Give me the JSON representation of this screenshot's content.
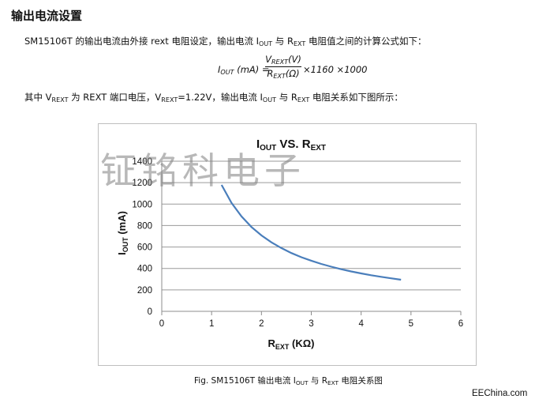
{
  "heading": "输出电流设置",
  "paragraph1": {
    "before": "SM15106T 的输出电流由外接 rext 电阻设定，输出电流 I",
    "sub1": "OUT",
    "middle": " 与 R",
    "sub2": "EXT",
    "after": " 电阻值之间的计算公式如下："
  },
  "formula": {
    "lhs_main": "I",
    "lhs_sub": "OUT",
    "lhs_unit": " (mA) =",
    "num_main": "V",
    "num_sub": "REXT",
    "num_unit": "(V)",
    "den_main": "R",
    "den_sub": "EXT",
    "den_unit": "(Ω)",
    "rhs": "×1160 ×1000"
  },
  "paragraph2": {
    "t1": "其中 V",
    "s1": "REXT",
    "t2": " 为 REXT 端口电压，V",
    "s2": "REXT",
    "t3": "=1.22V，输出电流 I",
    "s3": "OUT",
    "t4": " 与 R",
    "s4": "EXT",
    "t5": " 电阻关系如下图所示："
  },
  "watermark": "钲铭科电子",
  "caption": {
    "t1": "Fig. SM15106T 输出电流 I",
    "s1": "OUT",
    "t2": " 与 R",
    "s2": "EXT",
    "t3": " 电阻关系图"
  },
  "footer": "EEChina.com",
  "chart_data": {
    "type": "line",
    "title_main": "I",
    "title_sub": "OUT",
    "title_mid": " VS. R",
    "title_sub2": "EXT",
    "xlabel_main": "R",
    "xlabel_sub": "EXT",
    "xlabel_unit": " (KΩ)",
    "ylabel_main": "I",
    "ylabel_sub": "OUT",
    "ylabel_unit": " (mA)",
    "xlim": [
      0,
      6
    ],
    "ylim": [
      0,
      1400
    ],
    "xticks": [
      0,
      1,
      2,
      3,
      4,
      5,
      6
    ],
    "yticks": [
      0,
      200,
      400,
      600,
      800,
      1000,
      1200,
      1400
    ],
    "grid": true,
    "line_color": "#4a7ebb",
    "series": [
      {
        "x": [
          1.2,
          1.4,
          1.6,
          1.8,
          2.0,
          2.2,
          2.4,
          2.6,
          2.8,
          3.0,
          3.2,
          3.4,
          3.6,
          3.8,
          4.0,
          4.2,
          4.4,
          4.6,
          4.8
        ],
        "y": [
          1179,
          1011,
          885,
          786,
          708,
          643,
          590,
          544,
          505,
          472,
          442,
          416,
          393,
          372,
          354,
          337,
          322,
          308,
          295
        ]
      }
    ]
  }
}
